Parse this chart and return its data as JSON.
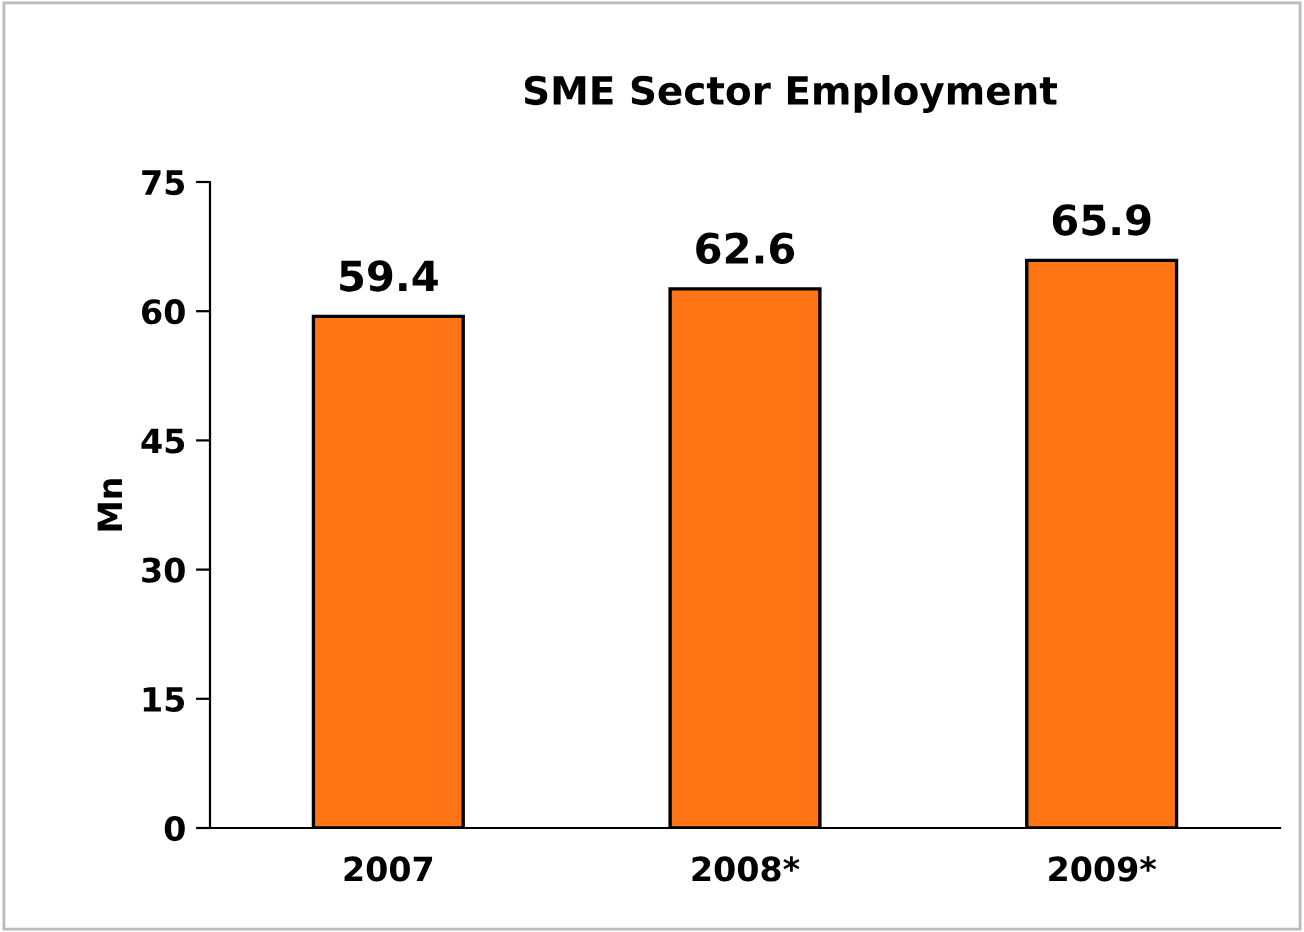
{
  "chart_data": {
    "type": "bar",
    "title": "SME Sector Employment",
    "ylabel": "Mn",
    "categories": [
      "2007",
      "2008*",
      "2009*"
    ],
    "values": [
      59.4,
      62.6,
      65.9
    ],
    "color": "#ff7415",
    "ylim": [
      0,
      75
    ],
    "yticks": [
      0,
      15,
      30,
      45,
      60,
      75
    ],
    "grid": false,
    "data_labels": true
  }
}
